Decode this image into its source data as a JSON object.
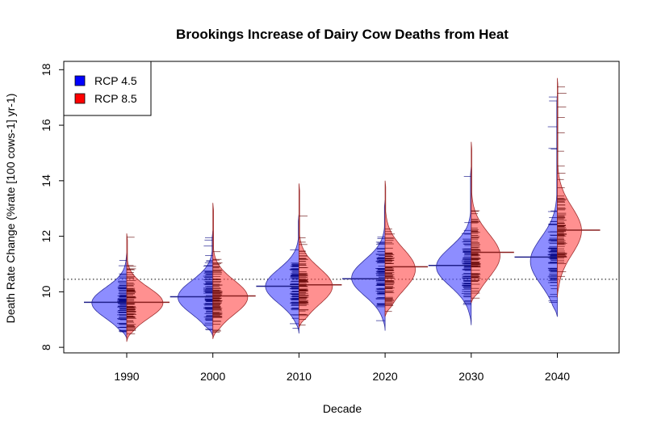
{
  "chart_data": {
    "type": "bean",
    "title": "Brookings Increase of Dairy Cow Deaths from Heat",
    "xlabel": "Decade",
    "ylabel": "Death Rate Change (%rate [100 cows-1] yr-1)",
    "categories": [
      "1990",
      "2000",
      "2010",
      "2020",
      "2030",
      "2040"
    ],
    "ylim": [
      7.8,
      18.3
    ],
    "yticks": [
      "8",
      "10",
      "12",
      "14",
      "16",
      "18"
    ],
    "reference_line": 10.45,
    "legend_position": "top-left",
    "series": [
      {
        "name": "RCP 4.5",
        "color": "#0000ff",
        "means": [
          9.62,
          9.82,
          10.2,
          10.47,
          10.95,
          11.25
        ],
        "distributions": [
          {
            "min": 8.3,
            "max": 11.4,
            "peak": 9.6,
            "peak_width": 0.75,
            "spread": 0.55
          },
          {
            "min": 8.4,
            "max": 12.2,
            "peak": 9.8,
            "peak_width": 0.75,
            "spread": 0.6
          },
          {
            "min": 8.5,
            "max": 12.8,
            "peak": 10.2,
            "peak_width": 0.72,
            "spread": 0.62
          },
          {
            "min": 8.6,
            "max": 13.3,
            "peak": 10.5,
            "peak_width": 0.72,
            "spread": 0.65
          },
          {
            "min": 8.8,
            "max": 14.5,
            "peak": 10.9,
            "peak_width": 0.75,
            "spread": 0.7
          },
          {
            "min": 9.1,
            "max": 17.1,
            "peak": 11.1,
            "peak_width": 0.58,
            "spread": 0.85
          }
        ]
      },
      {
        "name": "RCP 8.5",
        "color": "#ff0000",
        "means": [
          9.62,
          9.85,
          10.25,
          10.9,
          11.42,
          12.22
        ],
        "distributions": [
          {
            "min": 8.2,
            "max": 12.1,
            "peak": 9.6,
            "peak_width": 0.78,
            "spread": 0.55
          },
          {
            "min": 8.3,
            "max": 13.2,
            "peak": 9.8,
            "peak_width": 0.75,
            "spread": 0.62
          },
          {
            "min": 8.7,
            "max": 13.9,
            "peak": 10.2,
            "peak_width": 0.72,
            "spread": 0.66
          },
          {
            "min": 9.1,
            "max": 14.0,
            "peak": 10.8,
            "peak_width": 0.65,
            "spread": 0.75
          },
          {
            "min": 9.6,
            "max": 15.4,
            "peak": 11.3,
            "peak_width": 0.62,
            "spread": 0.8
          },
          {
            "min": 9.8,
            "max": 17.7,
            "peak": 12.2,
            "peak_width": 0.52,
            "spread": 0.85
          }
        ]
      }
    ]
  }
}
